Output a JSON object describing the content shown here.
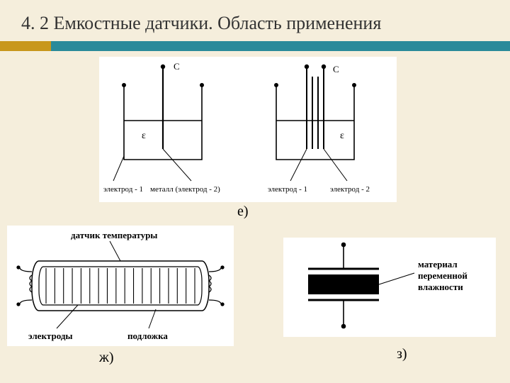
{
  "slide": {
    "title": "4. 2 Емкостные датчики. Область применения",
    "background_color": "#f5eedc",
    "accent_colors": {
      "left": "#c8971c",
      "right": "#2a8a9a"
    }
  },
  "figure_e": {
    "sublabel": "е)",
    "left_diagram": {
      "C_label": "C",
      "epsilon_label": "ε",
      "callouts": [
        "электрод - 1",
        "металл (электрод - 2)"
      ]
    },
    "right_diagram": {
      "C_label": "C",
      "epsilon_label": "ε",
      "callouts": [
        "электрод - 1",
        "электрод - 2"
      ]
    },
    "stroke_color": "#000000",
    "line_width": 1.4
  },
  "figure_zh": {
    "sublabel": "ж)",
    "top_label": "датчик температуры",
    "bottom_left_label": "электроды",
    "bottom_right_label": "подложка",
    "plate_count": 18,
    "stroke_color": "#000000",
    "line_width": 1.2
  },
  "figure_z": {
    "sublabel": "з)",
    "side_label_line1": "материал",
    "side_label_line2": "переменной",
    "side_label_line3": "влажности",
    "stroke_color": "#000000",
    "fill_color": "#000000"
  }
}
